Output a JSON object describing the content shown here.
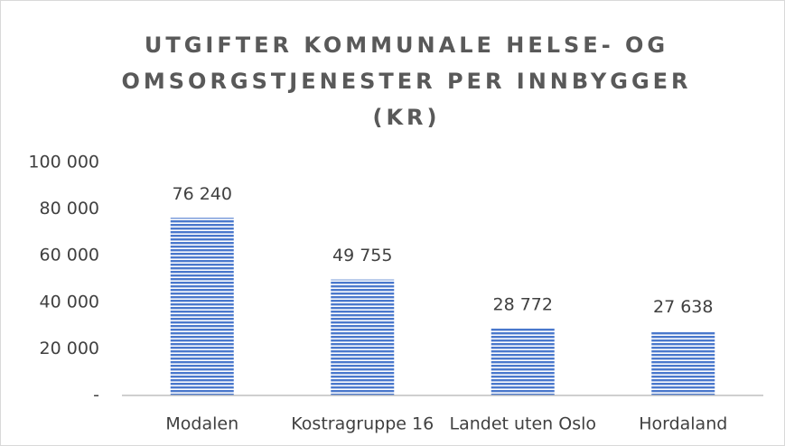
{
  "chart_data": {
    "type": "bar",
    "title": "UTGIFTER KOMMUNALE HELSE- OG OMSORGSTJENESTER PER INNBYGGER (KR)",
    "categories": [
      "Modalen",
      "Kostragruppe 16",
      "Landet uten Oslo",
      "Hordaland"
    ],
    "values": [
      76240,
      49755,
      28772,
      27638
    ],
    "value_labels": [
      "76 240",
      "49 755",
      "28 772",
      "27 638"
    ],
    "color": "#4472c4",
    "ylim": [
      0,
      100000
    ],
    "yticks": [
      {
        "value": 0,
        "label": "-"
      },
      {
        "value": 20000,
        "label": "20 000"
      },
      {
        "value": 40000,
        "label": "40 000"
      },
      {
        "value": 60000,
        "label": "60 000"
      },
      {
        "value": 80000,
        "label": "80 000"
      },
      {
        "value": 100000,
        "label": "100 000"
      }
    ],
    "grid": false
  }
}
